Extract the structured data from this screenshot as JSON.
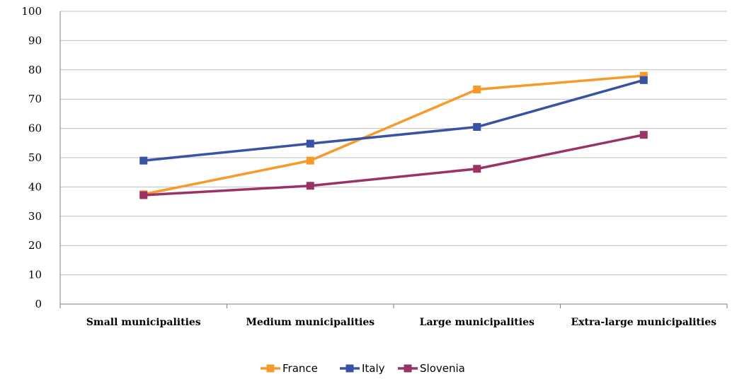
{
  "chart_data": {
    "type": "line",
    "categories": [
      "Small municipalities",
      "Medium municipalities",
      "Large municipalities",
      "Extra-large municipalities"
    ],
    "series": [
      {
        "name": "France",
        "color": "#f79a2b",
        "values": [
          37.5,
          49,
          73.3,
          78
        ]
      },
      {
        "name": "Italy",
        "color": "#3953a4",
        "values": [
          49,
          54.8,
          60.5,
          76.5
        ]
      },
      {
        "name": "Slovenia",
        "color": "#9b3266",
        "values": [
          37.2,
          40.4,
          46.2,
          57.8
        ]
      }
    ],
    "ylim": [
      0,
      100
    ],
    "yticks": [
      0,
      10,
      20,
      30,
      40,
      50,
      60,
      70,
      80,
      90,
      100
    ],
    "grid": true,
    "legend_position": "bottom"
  }
}
